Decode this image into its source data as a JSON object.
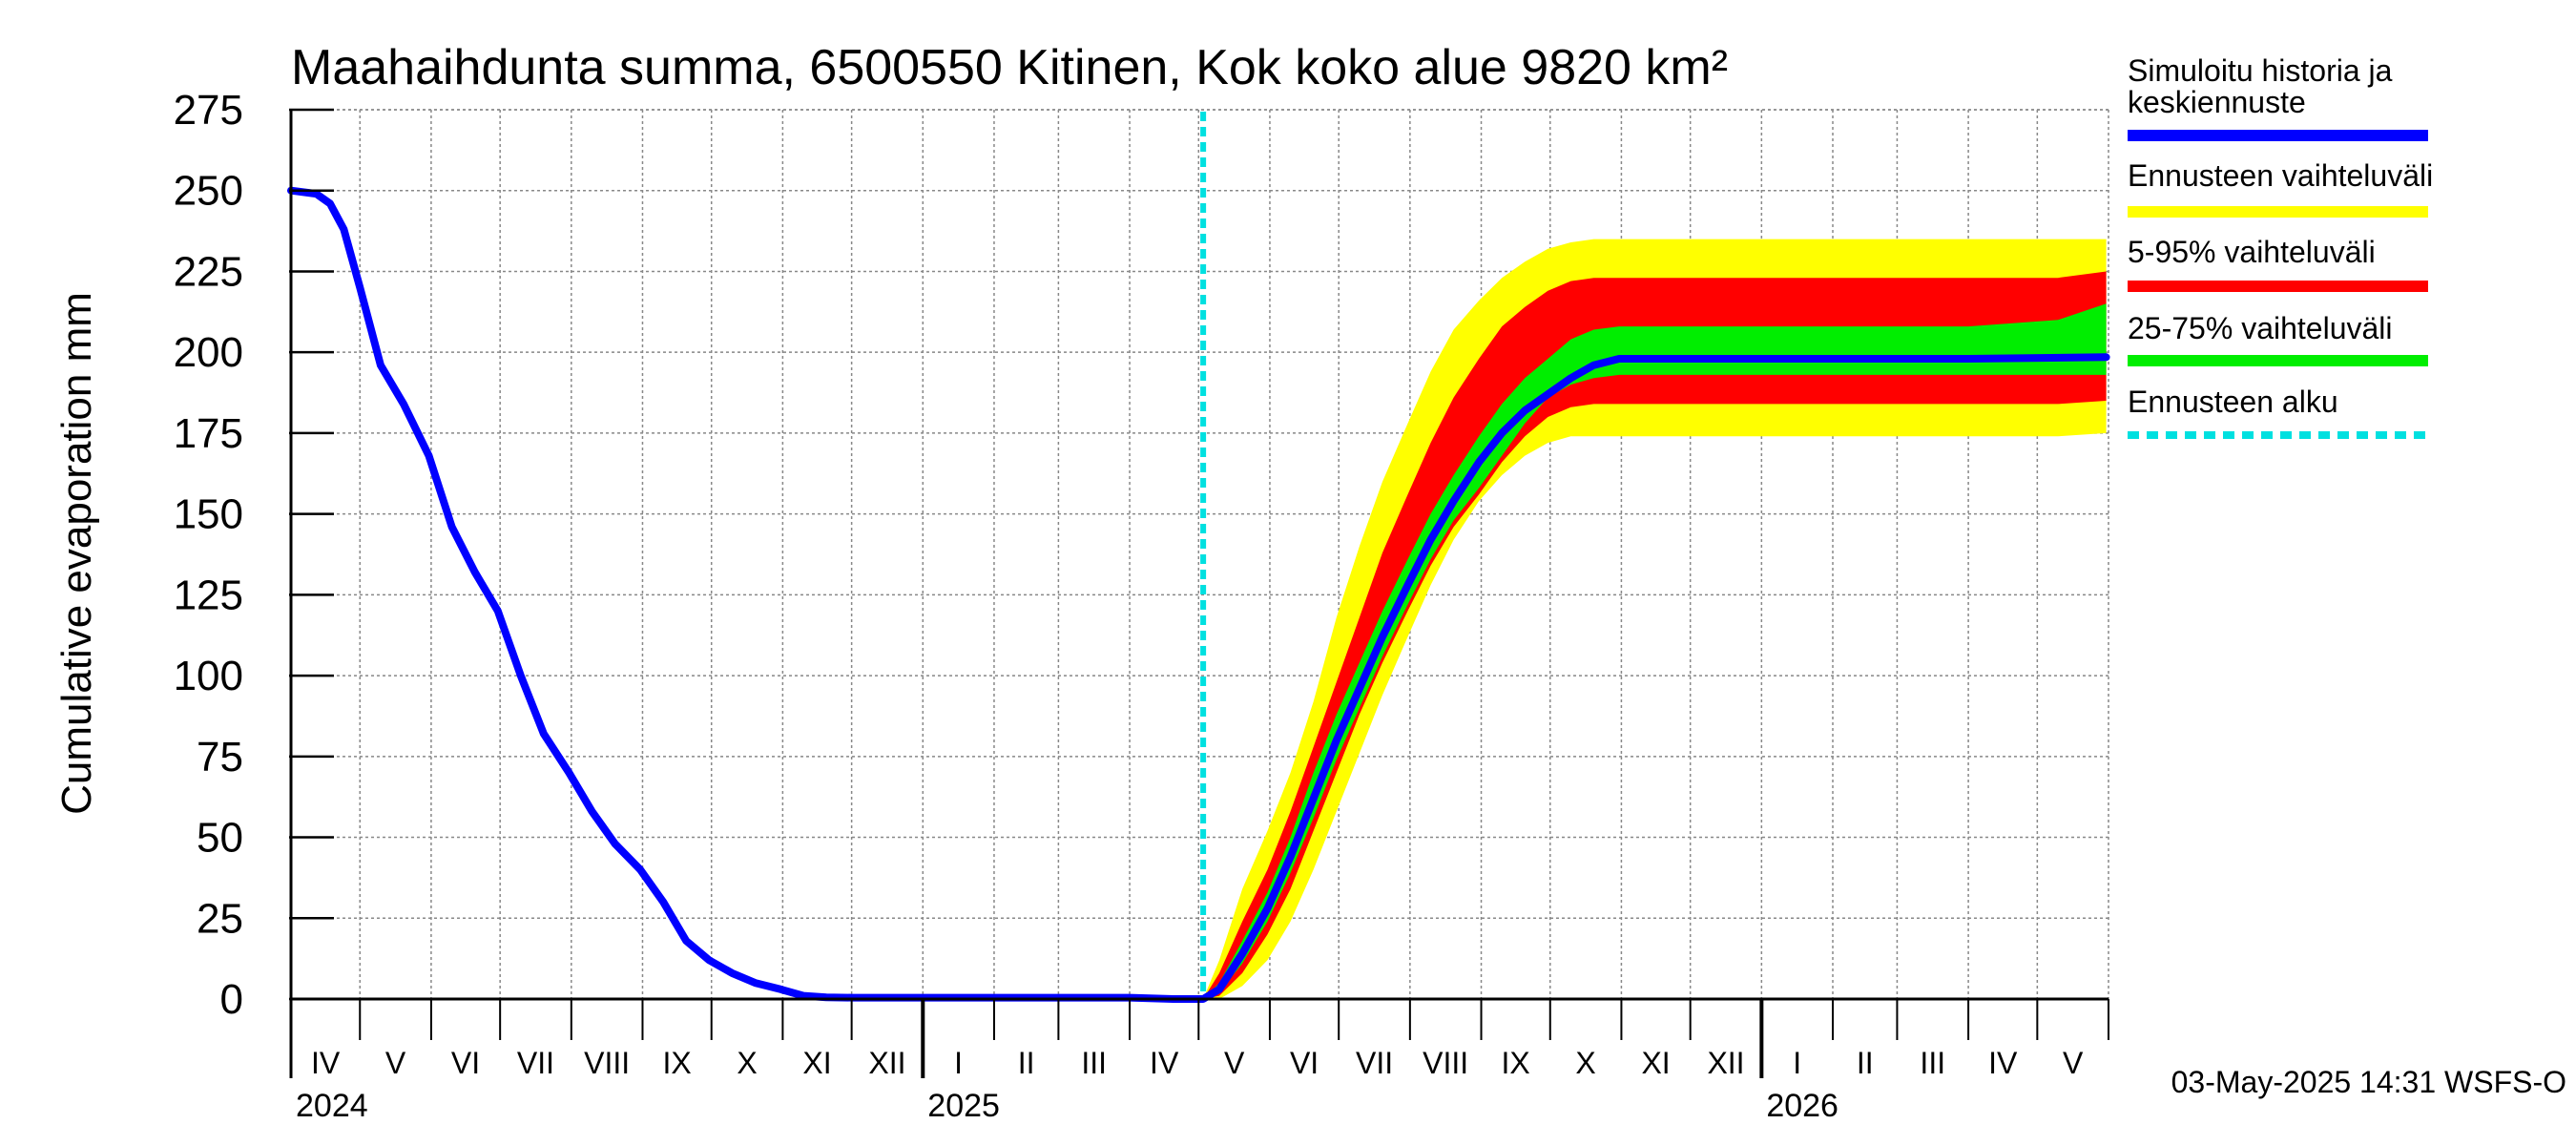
{
  "chart_data": {
    "type": "area",
    "title": "Maahaihdunta summa, 6500550 Kitinen, Kok koko alue 9820 km²",
    "ylabel": "Cumulative evaporation   mm",
    "xlabel": "",
    "ylim": [
      0,
      275
    ],
    "yticks": [
      "0",
      "25",
      "50",
      "75",
      "100",
      "125",
      "150",
      "175",
      "200",
      "225",
      "250",
      "275"
    ],
    "grid": true,
    "x_range": [
      "2024-04-01",
      "2026-05-31"
    ],
    "forecast_start": "2025-05-03",
    "months": [
      {
        "label": "IV",
        "start": "2024-04-01"
      },
      {
        "label": "V",
        "start": "2024-05-01"
      },
      {
        "label": "VI",
        "start": "2024-06-01"
      },
      {
        "label": "VII",
        "start": "2024-07-01"
      },
      {
        "label": "VIII",
        "start": "2024-08-01"
      },
      {
        "label": "IX",
        "start": "2024-09-01"
      },
      {
        "label": "X",
        "start": "2024-10-01"
      },
      {
        "label": "XI",
        "start": "2024-11-01"
      },
      {
        "label": "XII",
        "start": "2024-12-01"
      },
      {
        "label": "I",
        "start": "2025-01-01"
      },
      {
        "label": "II",
        "start": "2025-02-01"
      },
      {
        "label": "III",
        "start": "2025-03-01"
      },
      {
        "label": "IV",
        "start": "2025-04-01"
      },
      {
        "label": "V",
        "start": "2025-05-01"
      },
      {
        "label": "VI",
        "start": "2025-06-01"
      },
      {
        "label": "VII",
        "start": "2025-07-01"
      },
      {
        "label": "VIII",
        "start": "2025-08-01"
      },
      {
        "label": "IX",
        "start": "2025-09-01"
      },
      {
        "label": "X",
        "start": "2025-10-01"
      },
      {
        "label": "XI",
        "start": "2025-11-01"
      },
      {
        "label": "XII",
        "start": "2025-12-01"
      },
      {
        "label": "I",
        "start": "2026-01-01"
      },
      {
        "label": "II",
        "start": "2026-02-01"
      },
      {
        "label": "III",
        "start": "2026-03-01"
      },
      {
        "label": "IV",
        "start": "2026-04-01"
      },
      {
        "label": "V",
        "start": "2026-05-01"
      }
    ],
    "years": [
      {
        "label": "2024",
        "start": "2024-04-01"
      },
      {
        "label": "2025",
        "start": "2025-01-01"
      },
      {
        "label": "2026",
        "start": "2026-01-01"
      }
    ],
    "series": [
      {
        "name": "Simuloitu historia ja keskiennuste",
        "color": "#0000ff",
        "points": [
          [
            "2024-04-01",
            250
          ],
          [
            "2024-04-12",
            249
          ],
          [
            "2024-04-18",
            246
          ],
          [
            "2024-04-24",
            238
          ],
          [
            "2024-05-01",
            220
          ],
          [
            "2024-05-10",
            196
          ],
          [
            "2024-05-20",
            184
          ],
          [
            "2024-05-31",
            168
          ],
          [
            "2024-06-10",
            146
          ],
          [
            "2024-06-20",
            132
          ],
          [
            "2024-06-30",
            120
          ],
          [
            "2024-07-10",
            100
          ],
          [
            "2024-07-20",
            82
          ],
          [
            "2024-07-31",
            70
          ],
          [
            "2024-08-10",
            58
          ],
          [
            "2024-08-20",
            48
          ],
          [
            "2024-08-31",
            40
          ],
          [
            "2024-09-10",
            30
          ],
          [
            "2024-09-20",
            18
          ],
          [
            "2024-09-30",
            12
          ],
          [
            "2024-10-10",
            8
          ],
          [
            "2024-10-20",
            5
          ],
          [
            "2024-10-31",
            3
          ],
          [
            "2024-11-10",
            1
          ],
          [
            "2024-11-20",
            0.5
          ],
          [
            "2024-12-01",
            0.4
          ],
          [
            "2025-01-01",
            0.4
          ],
          [
            "2025-02-01",
            0.4
          ],
          [
            "2025-03-01",
            0.4
          ],
          [
            "2025-04-01",
            0.4
          ],
          [
            "2025-04-20",
            0
          ],
          [
            "2025-05-03",
            0
          ],
          [
            "2025-05-10",
            3
          ],
          [
            "2025-05-20",
            14
          ],
          [
            "2025-05-31",
            28
          ],
          [
            "2025-06-10",
            44
          ],
          [
            "2025-06-20",
            62
          ],
          [
            "2025-06-30",
            80
          ],
          [
            "2025-07-10",
            96
          ],
          [
            "2025-07-20",
            112
          ],
          [
            "2025-07-31",
            128
          ],
          [
            "2025-08-10",
            142
          ],
          [
            "2025-08-20",
            154
          ],
          [
            "2025-08-31",
            166
          ],
          [
            "2025-09-10",
            175
          ],
          [
            "2025-09-20",
            182
          ],
          [
            "2025-09-30",
            187
          ],
          [
            "2025-10-10",
            192
          ],
          [
            "2025-10-20",
            196
          ],
          [
            "2025-10-31",
            198
          ],
          [
            "2025-12-01",
            198
          ],
          [
            "2026-02-01",
            198
          ],
          [
            "2026-04-01",
            198
          ],
          [
            "2026-05-31",
            198.5
          ]
        ]
      },
      {
        "name": "Ennusteen vaihteluväli",
        "color": "#ffff00",
        "lower": [],
        "upper": []
      },
      {
        "name": "5-95% vaihteluväli",
        "color": "#ff0000",
        "lower": [],
        "upper": []
      },
      {
        "name": "25-75% vaihteluväli",
        "color": "#00ee00",
        "lower": [],
        "upper": []
      },
      {
        "name": "Ennusteen alku",
        "color": "#00e0e0",
        "date": "2025-05-03"
      }
    ],
    "bands": {
      "x": [
        "2025-05-03",
        "2025-05-10",
        "2025-05-20",
        "2025-05-31",
        "2025-06-10",
        "2025-06-20",
        "2025-06-30",
        "2025-07-10",
        "2025-07-20",
        "2025-07-31",
        "2025-08-10",
        "2025-08-20",
        "2025-08-31",
        "2025-09-10",
        "2025-09-20",
        "2025-09-30",
        "2025-10-10",
        "2025-10-20",
        "2025-10-31",
        "2025-12-01",
        "2026-02-01",
        "2026-04-01",
        "2026-05-10",
        "2026-05-31"
      ],
      "ennuste_lower": [
        0,
        0,
        4,
        12,
        24,
        40,
        58,
        76,
        94,
        112,
        128,
        142,
        154,
        162,
        168,
        172,
        174,
        174,
        174,
        174,
        174,
        174,
        174,
        175
      ],
      "ennuste_upper": [
        0,
        12,
        34,
        52,
        70,
        92,
        118,
        140,
        160,
        178,
        194,
        207,
        216,
        223,
        228,
        232,
        234,
        235,
        235,
        235,
        235,
        235,
        235,
        235
      ],
      "p5_lower": [
        0,
        1,
        8,
        20,
        34,
        52,
        70,
        88,
        104,
        120,
        134,
        146,
        156,
        166,
        174,
        180,
        183,
        184,
        184,
        184,
        184,
        184,
        184,
        185
      ],
      "p95_upper": [
        0,
        8,
        24,
        40,
        58,
        78,
        98,
        118,
        138,
        156,
        172,
        186,
        198,
        208,
        214,
        219,
        222,
        223,
        223,
        223,
        223,
        223,
        223,
        225
      ],
      "p25_lower": [
        0,
        2,
        11,
        24,
        39,
        56,
        74,
        90,
        106,
        122,
        136,
        148,
        158,
        168,
        178,
        186,
        190,
        192,
        193,
        193,
        193,
        193,
        193,
        193
      ],
      "p75_upper": [
        0,
        5,
        18,
        33,
        50,
        70,
        88,
        104,
        120,
        136,
        150,
        162,
        174,
        184,
        192,
        198,
        204,
        207,
        208,
        208,
        208,
        208,
        210,
        215
      ]
    },
    "legend": [
      {
        "label_line1": "Simuloitu historia ja",
        "label_line2": "keskiennuste",
        "color": "#0000ff",
        "style": "solid"
      },
      {
        "label_line1": "Ennusteen vaihteluväli",
        "label_line2": "",
        "color": "#ffff00",
        "style": "solid"
      },
      {
        "label_line1": "5-95% vaihteluväli",
        "label_line2": "",
        "color": "#ff0000",
        "style": "solid"
      },
      {
        "label_line1": "25-75% vaihteluväli",
        "label_line2": "",
        "color": "#00ee00",
        "style": "solid"
      },
      {
        "label_line1": "Ennusteen alku",
        "label_line2": "",
        "color": "#00e0e0",
        "style": "dashed"
      }
    ],
    "legend_position": "right",
    "footer": "03-May-2025 14:31 WSFS-O"
  }
}
